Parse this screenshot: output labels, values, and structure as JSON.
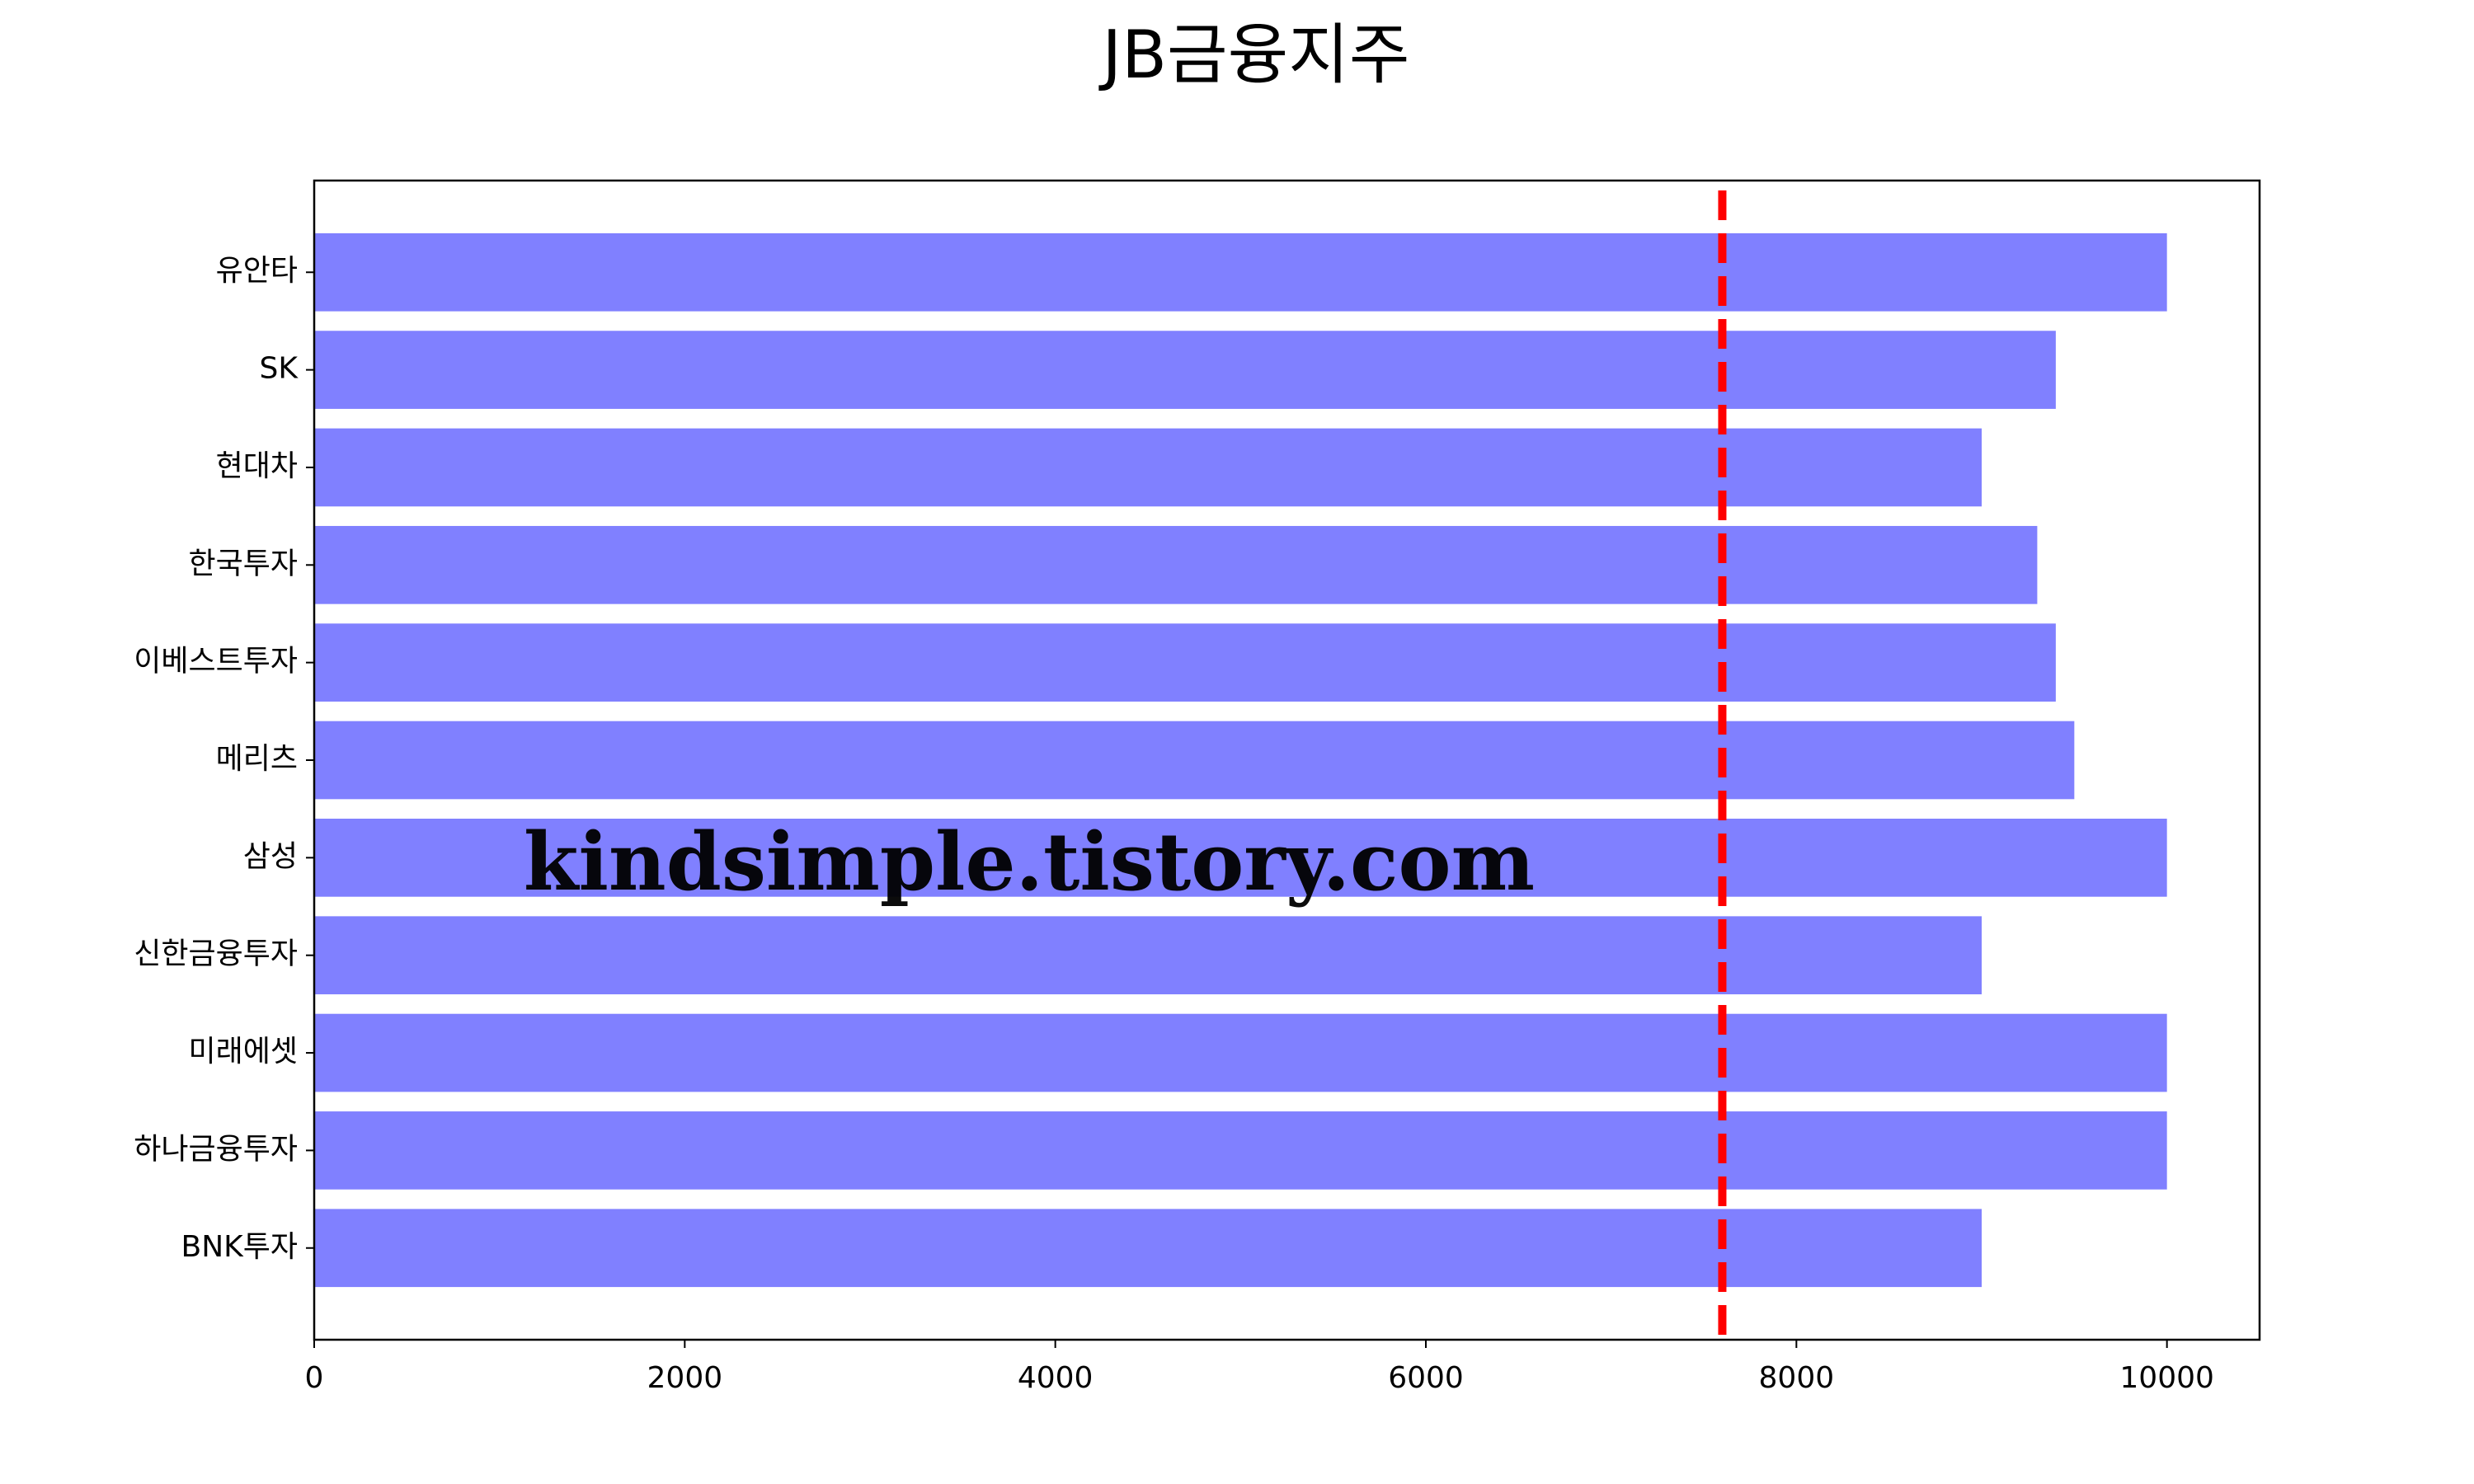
{
  "chart_data": {
    "type": "barh",
    "title": "JB금융지주",
    "categories": [
      "유안타",
      "SK",
      "현대차",
      "한국투자",
      "이베스트투자",
      "메리츠",
      "삼성",
      "신한금융투자",
      "미래에셋",
      "하나금융투자",
      "BNK투자"
    ],
    "values": [
      10000,
      9400,
      9000,
      9300,
      9400,
      9500,
      10000,
      9000,
      10000,
      10000,
      9000
    ],
    "color": "#8080ff",
    "xlim": [
      0,
      10500
    ],
    "xticks": [
      0,
      2000,
      4000,
      6000,
      8000,
      10000
    ],
    "grid": false,
    "reference_line": {
      "value": 7600,
      "color": "#ff0000",
      "style": "dashed"
    },
    "watermark": "kindsimple.tistory.com"
  }
}
